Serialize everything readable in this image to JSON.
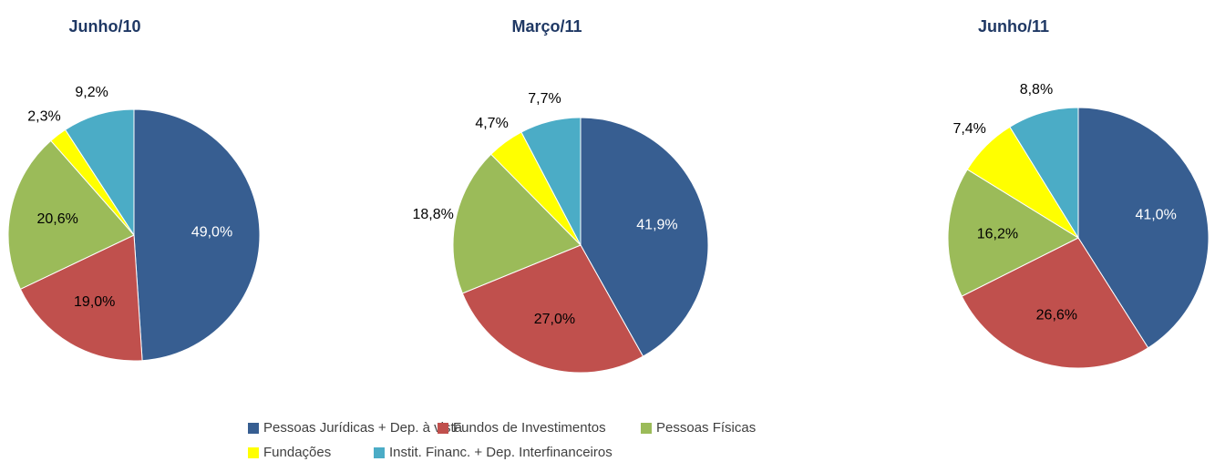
{
  "chart_data": [
    {
      "type": "pie",
      "title": "Junho/10",
      "categories": [
        "Pessoas Jurídicas + Dep. à vista",
        "Fundos de Investimentos",
        "Pessoas Físicas",
        "Fundações",
        "Instit. Financ. + Dep. Interfinanceiros"
      ],
      "colors": [
        "#375e91",
        "#c0504d",
        "#9bbb59",
        "#ffff00",
        "#4bacc6"
      ],
      "values": [
        49.0,
        19.0,
        20.6,
        2.3,
        9.2
      ],
      "value_labels": [
        "49,0%",
        "19,0%",
        "20,6%",
        "2,3%",
        "9,2%"
      ]
    },
    {
      "type": "pie",
      "title": "Março/11",
      "categories": [
        "Pessoas Jurídicas + Dep. à vista",
        "Fundos de Investimentos",
        "Pessoas Físicas",
        "Fundações",
        "Instit. Financ. + Dep. Interfinanceiros"
      ],
      "colors": [
        "#375e91",
        "#c0504d",
        "#9bbb59",
        "#ffff00",
        "#4bacc6"
      ],
      "values": [
        41.9,
        27.0,
        18.8,
        4.7,
        7.7
      ],
      "value_labels": [
        "41,9%",
        "27,0%",
        "18,8%",
        "4,7%",
        "7,7%"
      ]
    },
    {
      "type": "pie",
      "title": "Junho/11",
      "categories": [
        "Pessoas Jurídicas + Dep. à vista",
        "Fundos de Investimentos",
        "Pessoas Físicas",
        "Fundações",
        "Instit. Financ. + Dep. Interfinanceiros"
      ],
      "colors": [
        "#375e91",
        "#c0504d",
        "#9bbb59",
        "#ffff00",
        "#4bacc6"
      ],
      "values": [
        41.0,
        26.6,
        16.2,
        7.4,
        8.8
      ],
      "value_labels": [
        "41,0%",
        "26,6%",
        "16,2%",
        "7,4%",
        "8,8%"
      ]
    }
  ]
}
